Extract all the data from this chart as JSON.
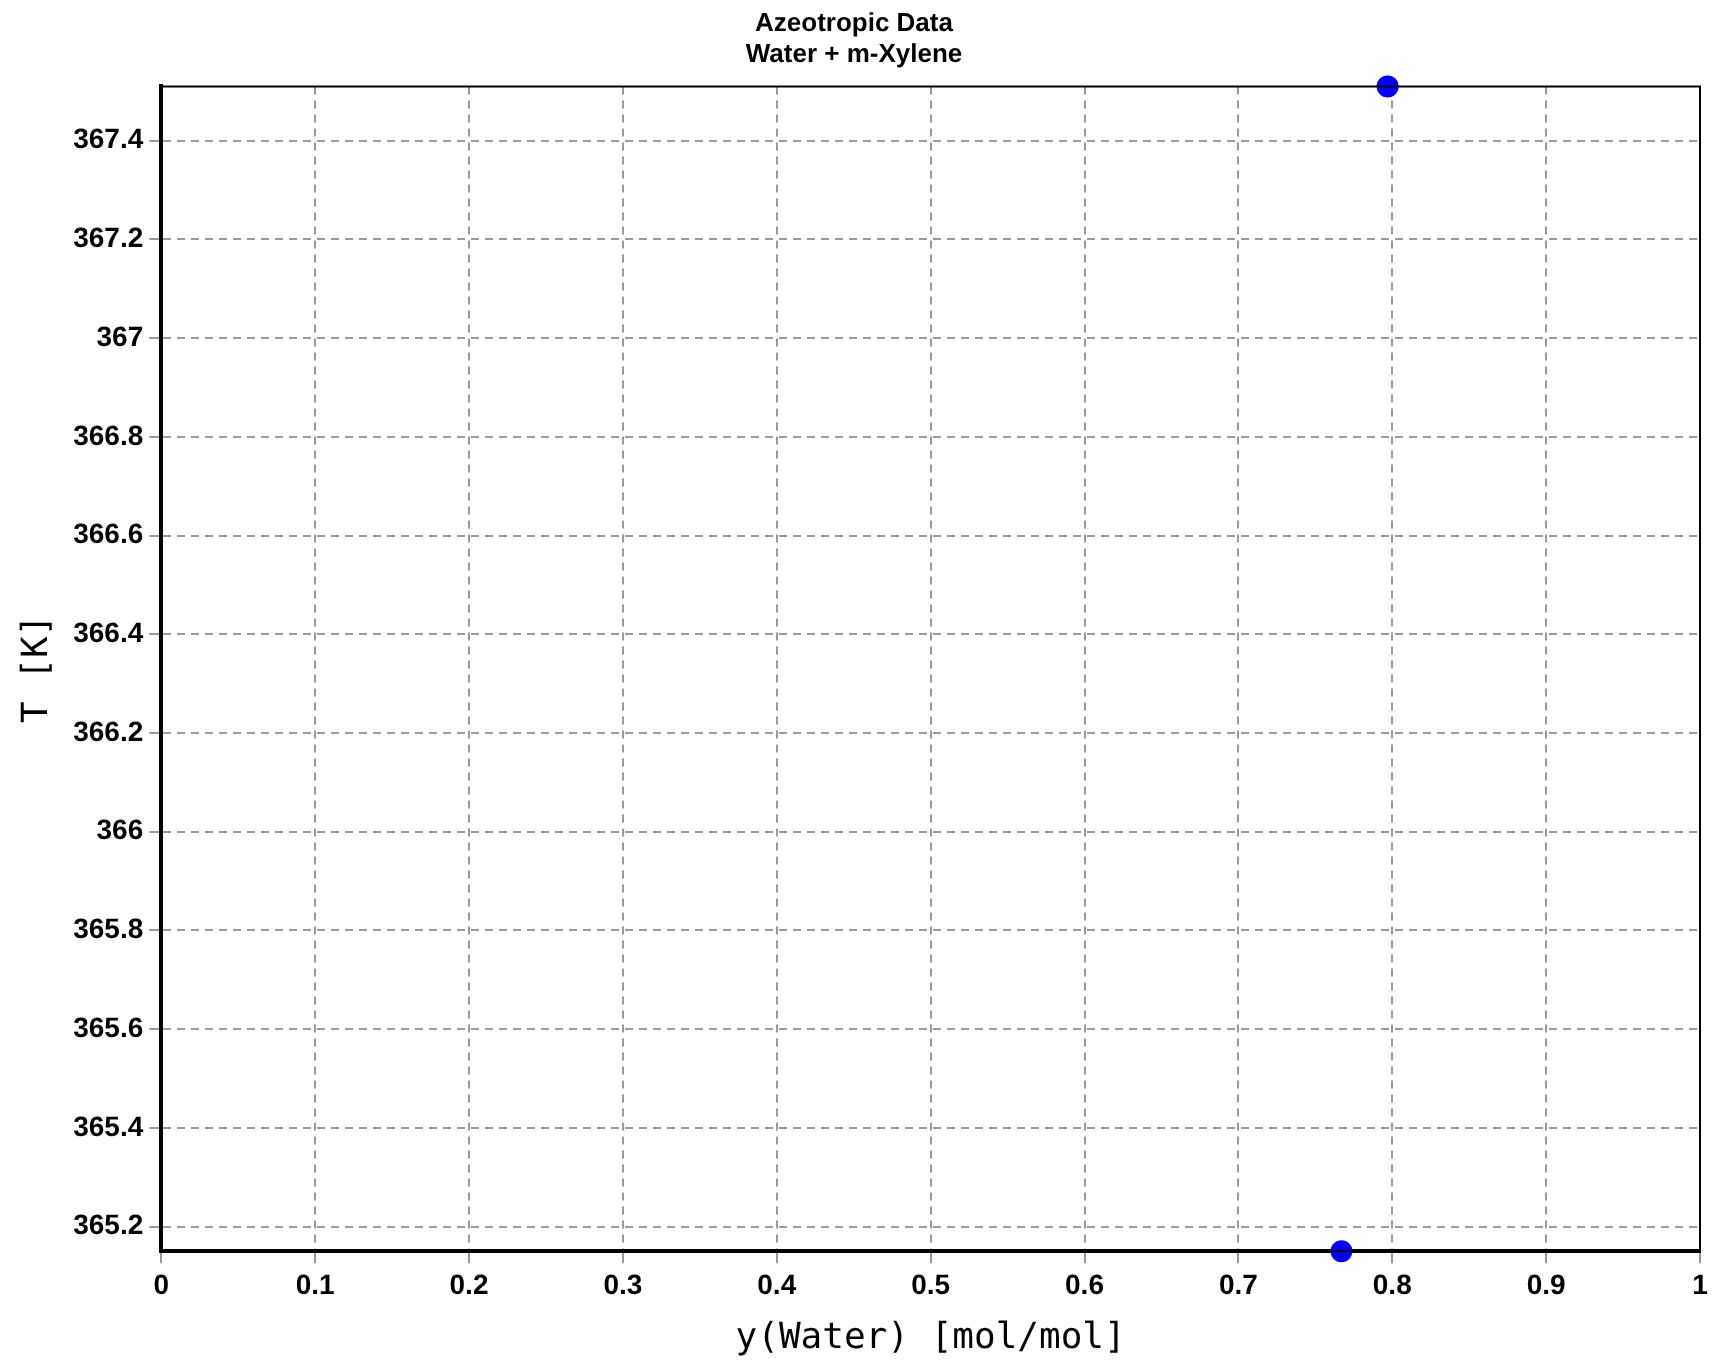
{
  "chart_data": {
    "type": "scatter",
    "title": "Azeotropic Data",
    "subtitle": "Water + m-Xylene",
    "xlabel": "y(Water) [mol/mol]",
    "ylabel": "T [K]",
    "series": [
      {
        "color": "#0000ff",
        "x": [
          0.767,
          0.797
        ],
        "values": [
          365.15,
          367.51
        ]
      }
    ],
    "xlim": [
      0,
      1
    ],
    "xticks": [
      0,
      0.1,
      0.2,
      0.3,
      0.4,
      0.5,
      0.6,
      0.7,
      0.8,
      0.9,
      1
    ],
    "ylim": [
      365.15,
      367.51
    ],
    "yticks": [
      365.2,
      365.4,
      365.6,
      365.8,
      366,
      366.2,
      366.4,
      366.6,
      366.8,
      367,
      367.2,
      367.4
    ],
    "grid": true,
    "marker": "circle",
    "legend": false
  }
}
